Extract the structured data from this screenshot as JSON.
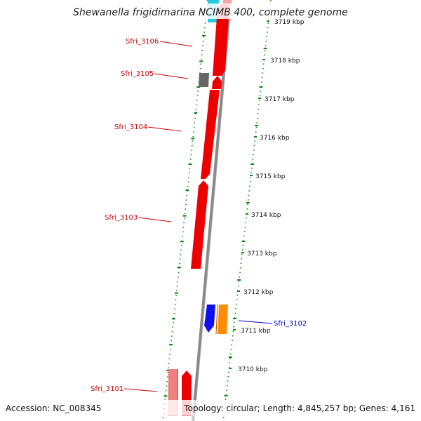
{
  "title": "Shewanella frigidimarina NCIMB 400, complete genome",
  "footer": {
    "accession": "Accession: NC_008345",
    "summary": "Topology: circular; Length: 4,845,257 bp; Genes: 4,161"
  },
  "ticks": [
    "3719 kbp",
    "3718 kbp",
    "3717 kbp",
    "3716 kbp",
    "3715 kbp",
    "3714 kbp",
    "3713 kbp",
    "3712 kbp",
    "3711 kbp",
    "3710 kbp"
  ],
  "gene_labels": [
    {
      "text": "Sfri_3106",
      "color": "#cc0000"
    },
    {
      "text": "Sfri_3105",
      "color": "#cc0000"
    },
    {
      "text": "Sfri_3104",
      "color": "#cc0000"
    },
    {
      "text": "Sfri_3103",
      "color": "#cc0000"
    },
    {
      "text": "Sfri_3102",
      "color": "#0000cc"
    },
    {
      "text": "Sfri_3101",
      "color": "#cc0000"
    }
  ],
  "colors": {
    "gene_red": "#ee0000",
    "gene_pink": "#f08080",
    "gene_grey": "#666666",
    "gene_blue": "#1010ee",
    "gene_orange": "#ff8c00",
    "gene_cyan": "#22ccdd",
    "backbone": "#888888",
    "ruler_green": "#118811"
  }
}
